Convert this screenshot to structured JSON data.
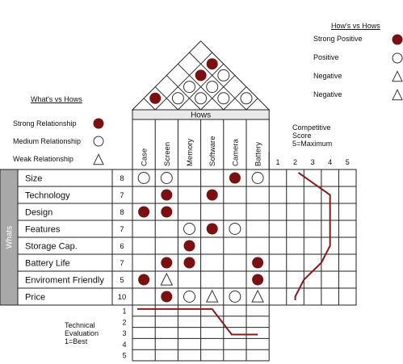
{
  "legend_whats_hows": {
    "title": "What's vs Hows",
    "items": [
      {
        "label": "Strong Relationship",
        "symbol": "strong"
      },
      {
        "label": "Medium Relationship",
        "symbol": "medium"
      },
      {
        "label": "Weak Relationship",
        "symbol": "weak"
      }
    ]
  },
  "legend_hows_hows": {
    "title": "How's vs Hows",
    "items": [
      {
        "label": "Strong Positive",
        "symbol": "strong"
      },
      {
        "label": "Positive",
        "symbol": "medium"
      },
      {
        "label": "Negative",
        "symbol": "weak"
      },
      {
        "label": "Negative",
        "symbol": "weak"
      }
    ]
  },
  "hows_header": "Hows",
  "whats_header": "Whats",
  "hows": [
    "Case",
    "Screen",
    "Memory",
    "Software",
    "Camera",
    "Battery"
  ],
  "whats": [
    {
      "label": "Size",
      "importance": "8"
    },
    {
      "label": "Technology",
      "importance": "7"
    },
    {
      "label": "Design",
      "importance": "8"
    },
    {
      "label": "Features",
      "importance": "7"
    },
    {
      "label": "Storage Cap.",
      "importance": "6"
    },
    {
      "label": "Battery Life",
      "importance": "7"
    },
    {
      "label": "Enviroment Friendly",
      "importance": "5"
    },
    {
      "label": "Price",
      "importance": "10"
    }
  ],
  "relationships": [
    [
      "medium",
      "medium",
      "",
      "",
      "strong",
      "medium"
    ],
    [
      "",
      "strong",
      "",
      "strong",
      "",
      ""
    ],
    [
      "strong",
      "strong",
      "",
      "",
      "",
      ""
    ],
    [
      "",
      "",
      "medium",
      "strong",
      "medium",
      ""
    ],
    [
      "",
      "",
      "strong",
      "",
      "",
      ""
    ],
    [
      "",
      "strong",
      "strong",
      "",
      "",
      "strong"
    ],
    [
      "strong",
      "weak",
      "",
      "",
      "",
      "strong"
    ],
    [
      "",
      "strong",
      "medium",
      "weak",
      "medium",
      "weak"
    ]
  ],
  "roof_correlations": [
    {
      "pair": [
        "Case",
        "Screen"
      ],
      "symbol": "strong"
    },
    {
      "pair": [
        "Screen",
        "Memory"
      ],
      "symbol": "medium"
    },
    {
      "pair": [
        "Memory",
        "Software"
      ],
      "symbol": "medium"
    },
    {
      "pair": [
        "Software",
        "Camera"
      ],
      "symbol": "medium"
    },
    {
      "pair": [
        "Camera",
        "Battery"
      ],
      "symbol": "medium"
    },
    {
      "pair": [
        "Screen",
        "Software"
      ],
      "symbol": "medium"
    },
    {
      "pair": [
        "Memory",
        "Camera"
      ],
      "symbol": "medium"
    },
    {
      "pair": [
        "Screen",
        "Camera"
      ],
      "symbol": "strong"
    },
    {
      "pair": [
        "Memory",
        "Battery"
      ],
      "symbol": "medium"
    },
    {
      "pair": [
        "Screen",
        "Battery"
      ],
      "symbol": "strong"
    }
  ],
  "competitive": {
    "title_lines": [
      "Competitive",
      "Score",
      "5=Maximum"
    ],
    "scale": [
      "1",
      "2",
      "3",
      "4",
      "5"
    ],
    "scores": [
      2,
      4,
      4,
      4,
      4,
      3.5,
      2.5,
      2
    ]
  },
  "technical": {
    "title_lines": [
      "Technical",
      "Evaluation",
      "1=Best"
    ],
    "scale": [
      "1",
      "2",
      "3",
      "4",
      "5"
    ],
    "scores": [
      1,
      1,
      1,
      1,
      3,
      3
    ]
  },
  "colors": {
    "strong_fill": "#7a1010",
    "trend_line": "#8b1a1a",
    "whats_side_bar": "#a8a8a8",
    "grid": "#222222"
  }
}
